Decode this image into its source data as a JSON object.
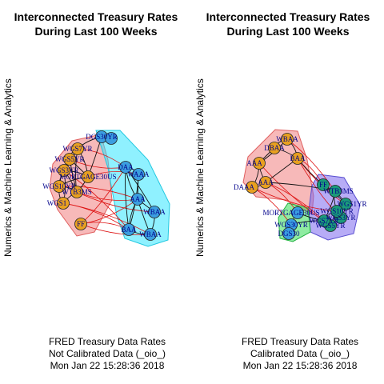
{
  "figures": [
    {
      "id": "left",
      "title_line1": "Interconnected Treasury Rates",
      "title_line2": "During Last 100 Weeks",
      "ylabel": "Numerics & Machine Learning & Analytics",
      "caption_line1": "FRED Treasury Data Rates",
      "caption_line2": "Not Calibrated Data (_oio_)",
      "caption_line3": "Mon Jan 22 15:28:36 2018",
      "groups": [
        {
          "fill": "#f08080",
          "stroke": "#e06060",
          "members": [
            "WGS7YR",
            "WGS5YR",
            "WGS3YR",
            "WGS1YR",
            "MORTGAGE30US",
            "WTB3MS",
            "WGS10YR",
            "WGS1",
            "FF",
            "DGS30YR"
          ]
        },
        {
          "fill": "#33e6ff",
          "stroke": "#22c8e0",
          "members": [
            "DGS30YR",
            "DAA",
            "WAAA",
            "AAA",
            "WBAA",
            "BAA",
            "WBAA2"
          ]
        }
      ],
      "nodes": [
        {
          "id": "DGS30YR",
          "label": "DGS30YR",
          "color": "#3b9ee0"
        },
        {
          "id": "DGS30YR_b",
          "label": "",
          "color": "#3b9ee0"
        },
        {
          "id": "WGS7YR",
          "label": "WGS7YR",
          "color": "#e8a020"
        },
        {
          "id": "WGS5YR",
          "label": "WGS5YR",
          "color": "#e8a020"
        },
        {
          "id": "WGS3YR",
          "label": "WGS3YR",
          "color": "#e8a020"
        },
        {
          "id": "MORTGAGE30US",
          "label": "MORTGAGE30US",
          "color": "#e8a020"
        },
        {
          "id": "WGS10YR",
          "label": "WGS10YR",
          "color": "#e8a020"
        },
        {
          "id": "WTB3MS",
          "label": "WTB3MS",
          "color": "#e8a020"
        },
        {
          "id": "WGS1",
          "label": "WGS1",
          "color": "#e8a020"
        },
        {
          "id": "FF",
          "label": "FF",
          "color": "#e8a020"
        },
        {
          "id": "DAA",
          "label": "DAA",
          "color": "#3b9ee0"
        },
        {
          "id": "WAAA",
          "label": "WAAA",
          "color": "#3b9ee0"
        },
        {
          "id": "AAA",
          "label": "AAA",
          "color": "#3b9ee0"
        },
        {
          "id": "WBAA2",
          "label": "WBAA",
          "color": "#3b9ee0"
        },
        {
          "id": "BAA",
          "label": "BAA",
          "color": "#3b9ee0"
        },
        {
          "id": "WBAA",
          "label": "WBAA",
          "color": "#3b9ee0"
        }
      ]
    },
    {
      "id": "right",
      "title_line1": "Interconnected Treasury Rates",
      "title_line2": "During Last 100 Weeks",
      "ylabel": "Numerics & Machine Learning & Analytics",
      "caption_line1": "FRED Treasury Data Rates",
      "caption_line2": "Calibrated Data (_oio_)",
      "caption_line3": "Mon Jan 22 15:28:36 2018",
      "groups": [
        {
          "fill": "#f08080",
          "stroke": "#e06060",
          "members": [
            "WBAA",
            "DBAA",
            "AAA",
            "BAA",
            "DAAA",
            "DAA"
          ]
        },
        {
          "fill": "#7b68ee",
          "stroke": "#5a4fd0",
          "members": [
            "FF",
            "WTB3MS",
            "WGS1YR",
            "WGS3YR",
            "WGS5YR",
            "WGS7YR"
          ]
        },
        {
          "fill": "#33dd55",
          "stroke": "#22b040",
          "members": [
            "MORTGAGE30US",
            "WGS30YR",
            "DGS30"
          ]
        }
      ],
      "nodes": [
        {
          "id": "WBAA",
          "label": "WBAA",
          "color": "#e8a020"
        },
        {
          "id": "DBAA",
          "label": "DBAA",
          "color": "#e8a020"
        },
        {
          "id": "AAA",
          "label": "AAA",
          "color": "#e8a020"
        },
        {
          "id": "BAA",
          "label": "BAA",
          "color": "#e8a020"
        },
        {
          "id": "DAAA",
          "label": "DAAA",
          "color": "#e8a020"
        },
        {
          "id": "DAA",
          "label": "AAA",
          "color": "#e8a020"
        },
        {
          "id": "FF",
          "label": "FF",
          "color": "#1a9a7a"
        },
        {
          "id": "WTB3MS",
          "label": "WTB3MS",
          "color": "#1a9a7a"
        },
        {
          "id": "WGS1YR",
          "label": "WGS1YR",
          "color": "#1a9a7a"
        },
        {
          "id": "WGS3YR",
          "label": "WGS3YR",
          "color": "#1a9a7a"
        },
        {
          "id": "WGS5YR",
          "label": "WGS5YR",
          "color": "#1a9a7a"
        },
        {
          "id": "WGS7YR",
          "label": "WGS7YR",
          "color": "#1a9a7a"
        },
        {
          "id": "WGS10YR",
          "label": "WGS10YR",
          "color": "#1a9a7a"
        },
        {
          "id": "MORTGAGE30US",
          "label": "MORTGAGE30US",
          "color": "#3b9ee0"
        },
        {
          "id": "WGS30YR",
          "label": "WGS30YR",
          "color": "#3b9ee0"
        },
        {
          "id": "DGS30",
          "label": "DGS30",
          "color": "#3b9ee0"
        }
      ]
    }
  ]
}
